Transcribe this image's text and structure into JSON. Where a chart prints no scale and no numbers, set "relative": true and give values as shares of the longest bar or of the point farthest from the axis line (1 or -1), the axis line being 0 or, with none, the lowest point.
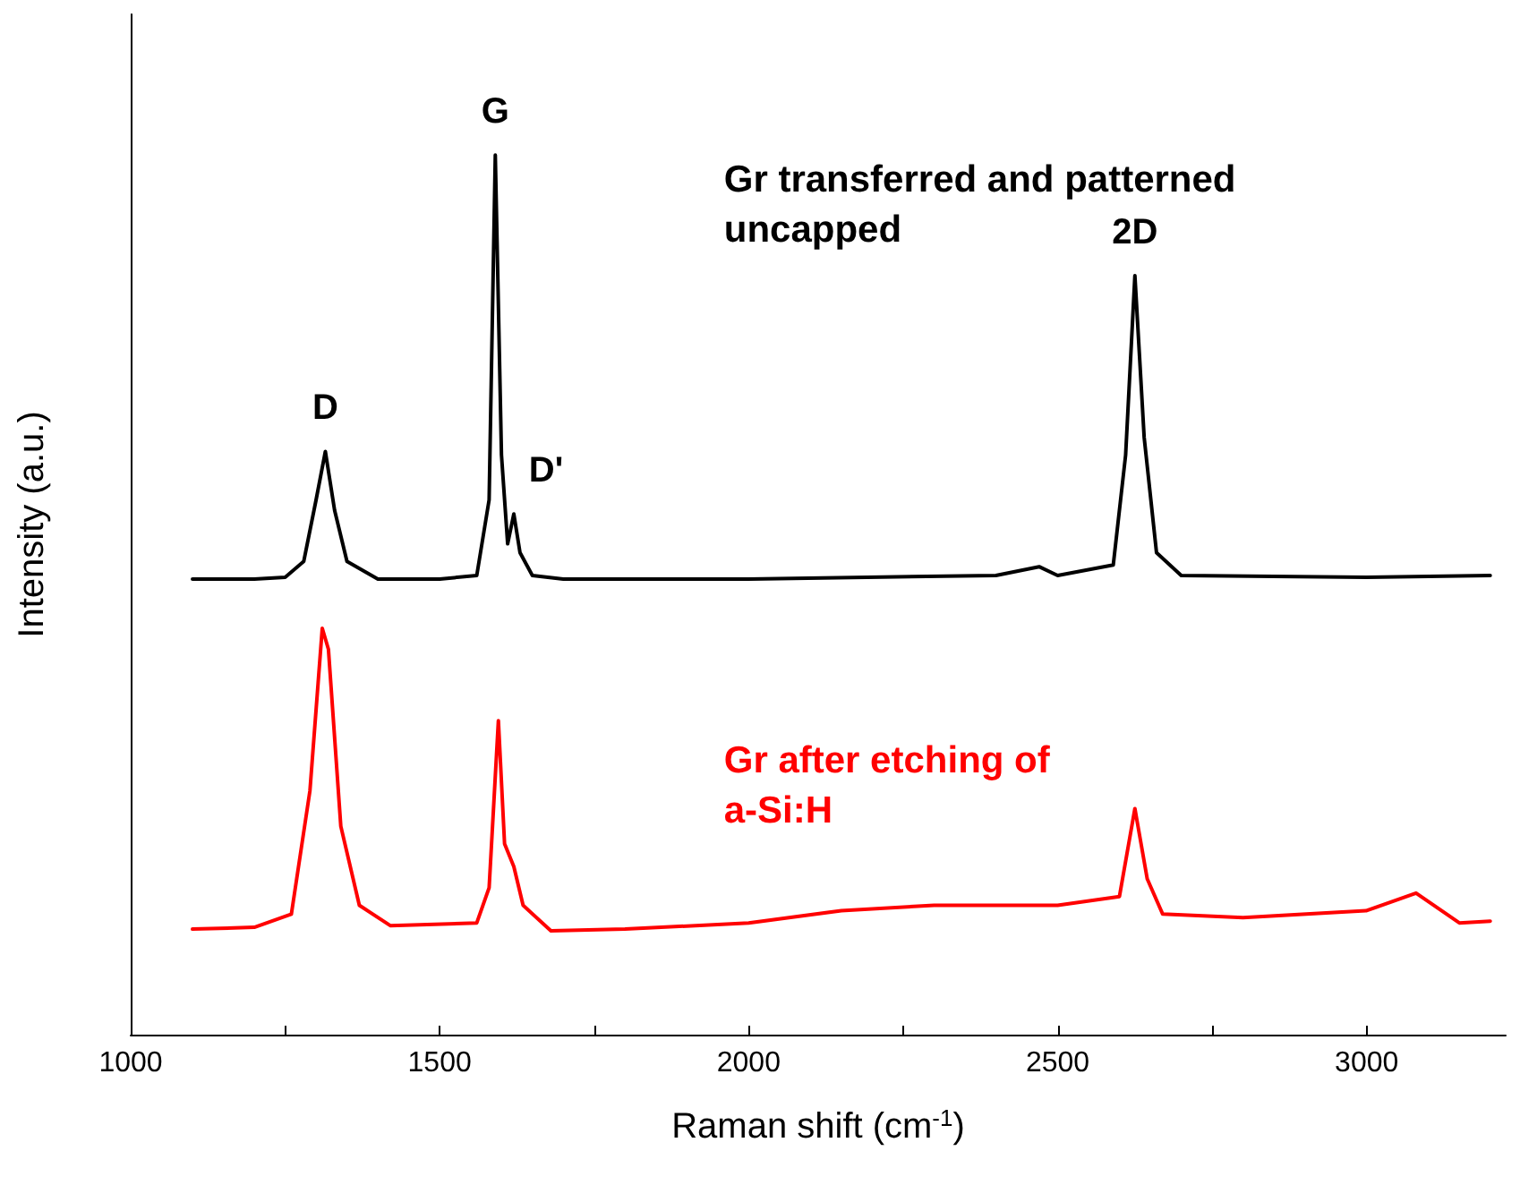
{
  "chart_data": {
    "type": "line",
    "relative": true,
    "xlabel": "Raman shift (cm$^{-1}$)",
    "ylabel": "Intensity (a.u.)",
    "xlim": [
      1000,
      3225
    ],
    "xticks": [
      1000,
      {
        "value": 1250,
        "label": null
      },
      1500,
      {
        "value": 1750,
        "label": null
      },
      2000,
      {
        "value": 2250,
        "label": null
      },
      2500,
      {
        "value": 2750,
        "label": null
      },
      3000
    ],
    "grid": false,
    "marker": "none",
    "line_style": "solid",
    "series": [
      {
        "name": "Gr transferred and patterned uncapped",
        "color": "#000000",
        "x": [
          1100,
          1200,
          1250,
          1280,
          1300,
          1315,
          1330,
          1350,
          1400,
          1500,
          1560,
          1580,
          1590,
          1600,
          1610,
          1620,
          1630,
          1650,
          1700,
          2000,
          2400,
          2470,
          2500,
          2590,
          2610,
          2625,
          2640,
          2660,
          2700,
          3000,
          3200
        ],
        "values": [
          0.518,
          0.518,
          0.52,
          0.538,
          0.608,
          0.663,
          0.596,
          0.538,
          0.518,
          0.518,
          0.522,
          0.608,
          1.0,
          0.659,
          0.558,
          0.592,
          0.548,
          0.522,
          0.518,
          0.518,
          0.522,
          0.532,
          0.522,
          0.534,
          0.659,
          0.863,
          0.679,
          0.548,
          0.522,
          0.52,
          0.522
        ]
      },
      {
        "name": "Gr after etching of a-Si:H",
        "color": "#ff0000",
        "x": [
          1100,
          1200,
          1260,
          1290,
          1310,
          1320,
          1340,
          1370,
          1420,
          1560,
          1580,
          1595,
          1605,
          1620,
          1635,
          1680,
          1800,
          2000,
          2150,
          2300,
          2500,
          2600,
          2625,
          2645,
          2670,
          2800,
          3000,
          3080,
          3150,
          3200
        ],
        "values": [
          0.12,
          0.122,
          0.137,
          0.277,
          0.462,
          0.438,
          0.237,
          0.147,
          0.124,
          0.127,
          0.167,
          0.357,
          0.217,
          0.191,
          0.147,
          0.118,
          0.12,
          0.127,
          0.141,
          0.147,
          0.147,
          0.157,
          0.257,
          0.177,
          0.137,
          0.133,
          0.141,
          0.161,
          0.127,
          0.129
        ]
      }
    ],
    "annotations": [
      {
        "text": "D",
        "x": 1315,
        "y": 0.663
      },
      {
        "text": "G",
        "x": 1590,
        "y": 1.0
      },
      {
        "text": "D'",
        "x": 1620,
        "y": 0.592
      },
      {
        "text": "2D",
        "x": 2625,
        "y": 0.863
      }
    ]
  }
}
